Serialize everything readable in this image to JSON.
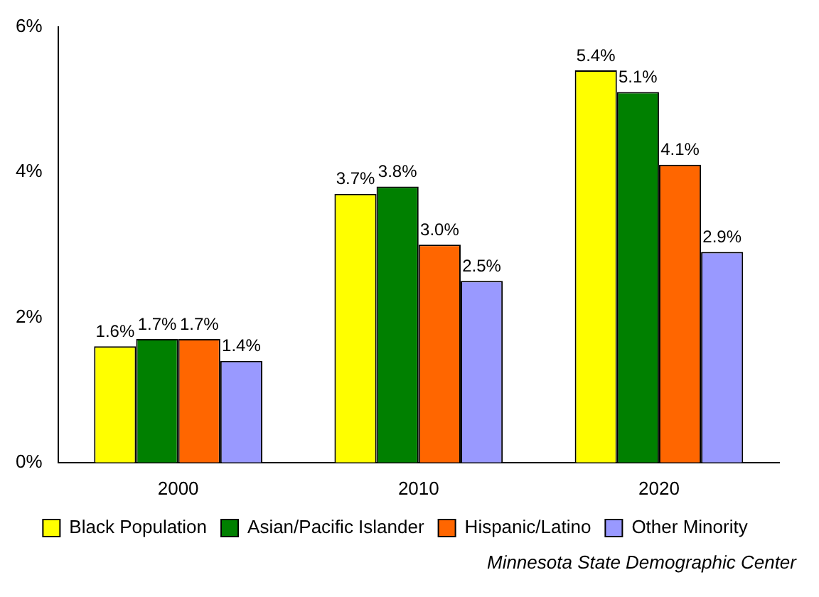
{
  "chart_data": {
    "type": "bar",
    "categories": [
      "2000",
      "2010",
      "2020"
    ],
    "series": [
      {
        "name": "Black Population",
        "color": "#ffff00",
        "values": [
          1.6,
          3.7,
          5.4
        ],
        "value_labels": [
          "1.6%",
          "3.7%",
          "5.4%"
        ]
      },
      {
        "name": "Asian/Pacific Islander",
        "color": "#008000",
        "values": [
          1.7,
          3.8,
          5.1
        ],
        "value_labels": [
          "1.7%",
          "3.8%",
          "5.1%"
        ]
      },
      {
        "name": "Hispanic/Latino",
        "color": "#ff6600",
        "values": [
          1.7,
          3.0,
          4.1
        ],
        "value_labels": [
          "1.7%",
          "3.0%",
          "4.1%"
        ]
      },
      {
        "name": "Other Minority",
        "color": "#9999ff",
        "values": [
          1.4,
          2.5,
          2.9
        ],
        "value_labels": [
          "1.4%",
          "2.5%",
          "2.9%"
        ]
      }
    ],
    "ylim": [
      0,
      6
    ],
    "yticks": [
      {
        "value": 0,
        "label": "0%"
      },
      {
        "value": 2,
        "label": "2%"
      },
      {
        "value": 4,
        "label": "4%"
      },
      {
        "value": 6,
        "label": "6%"
      }
    ],
    "legend": "bottom",
    "annotations": [
      "Minnesota State Demographic Center"
    ]
  }
}
